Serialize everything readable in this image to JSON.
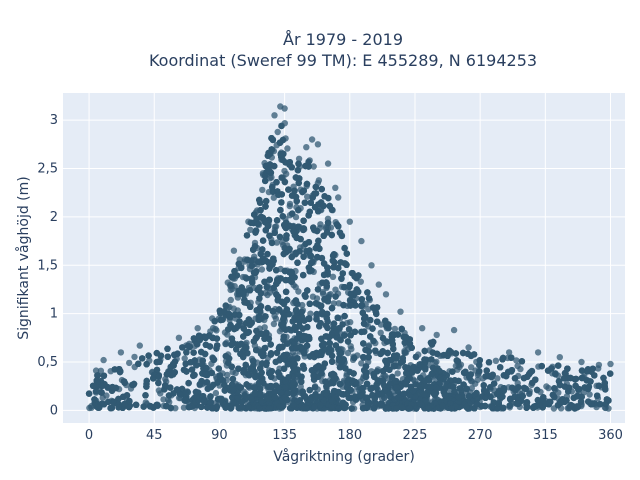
{
  "chart_data": {
    "type": "scatter",
    "title_line1": "År 1979 - 2019",
    "title_line2": "Koordinat (Sweref 99 TM): E 455289, N 6194253",
    "xlabel": "Vågriktning (grader)",
    "ylabel": "Signifikant våghöjd (m)",
    "xlim": [
      -18,
      370
    ],
    "ylim": [
      -0.13,
      3.28
    ],
    "x_ticks": [
      0,
      45,
      90,
      135,
      180,
      225,
      270,
      315,
      360
    ],
    "x_tick_labels": [
      "0",
      "45",
      "90",
      "135",
      "180",
      "225",
      "270",
      "315",
      "360"
    ],
    "y_ticks": [
      0,
      0.5,
      1,
      1.5,
      2,
      2.5,
      3
    ],
    "y_tick_labels": [
      "0",
      "0,5",
      "1",
      "1,5",
      "2",
      "2,5",
      "3"
    ],
    "grid": true,
    "colors": {
      "plot_background": "#e5ecf6",
      "grid": "#ffffff",
      "marker": "#325a73",
      "text": "#2a3f5f"
    },
    "series": [
      {
        "envelope": [
          [
            0,
            0.4
          ],
          [
            10,
            0.45
          ],
          [
            20,
            0.55
          ],
          [
            30,
            0.55
          ],
          [
            45,
            0.6
          ],
          [
            60,
            0.68
          ],
          [
            75,
            0.82
          ],
          [
            85,
            0.9
          ],
          [
            95,
            1.3
          ],
          [
            105,
            1.6
          ],
          [
            115,
            2.2
          ],
          [
            122,
            2.65
          ],
          [
            127,
            2.9
          ],
          [
            130,
            3.05
          ],
          [
            135,
            3.0
          ],
          [
            140,
            2.55
          ],
          [
            150,
            2.7
          ],
          [
            160,
            2.35
          ],
          [
            170,
            2.05
          ],
          [
            180,
            1.6
          ],
          [
            190,
            1.3
          ],
          [
            200,
            1.05
          ],
          [
            210,
            0.9
          ],
          [
            225,
            0.75
          ],
          [
            240,
            0.7
          ],
          [
            255,
            0.6
          ],
          [
            270,
            0.6
          ],
          [
            290,
            0.55
          ],
          [
            315,
            0.5
          ],
          [
            340,
            0.45
          ],
          [
            360,
            0.45
          ]
        ],
        "outliers": [
          [
            132,
            3.14
          ],
          [
            135,
            3.12
          ],
          [
            128,
            3.05
          ],
          [
            154,
            2.8
          ],
          [
            158,
            2.75
          ],
          [
            150,
            2.72
          ],
          [
            145,
            2.6
          ],
          [
            165,
            2.55
          ],
          [
            120,
            2.45
          ],
          [
            172,
            2.2
          ],
          [
            180,
            1.95
          ],
          [
            188,
            1.75
          ],
          [
            110,
            1.95
          ],
          [
            100,
            1.65
          ],
          [
            85,
            0.95
          ],
          [
            75,
            0.85
          ],
          [
            62,
            0.75
          ],
          [
            35,
            0.67
          ],
          [
            22,
            0.6
          ],
          [
            10,
            0.52
          ],
          [
            195,
            1.5
          ],
          [
            205,
            1.2
          ],
          [
            215,
            1.02
          ],
          [
            230,
            0.85
          ],
          [
            252,
            0.83
          ],
          [
            262,
            0.65
          ],
          [
            290,
            0.6
          ],
          [
            310,
            0.6
          ],
          [
            325,
            0.55
          ],
          [
            340,
            0.5
          ],
          [
            352,
            0.47
          ],
          [
            360,
            0.48
          ],
          [
            240,
            0.78
          ],
          [
            200,
            1.3
          ],
          [
            170,
            2.3
          ]
        ]
      }
    ]
  }
}
